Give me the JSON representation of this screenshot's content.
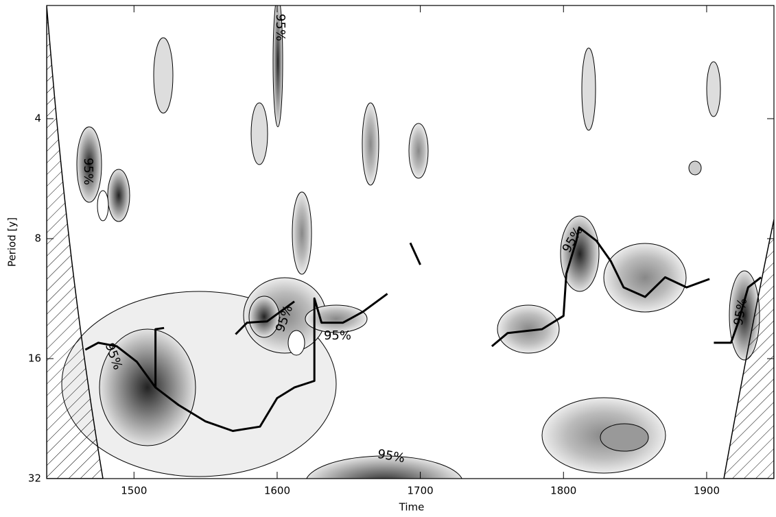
{
  "chart_data": {
    "type": "line",
    "xlabel": "Time",
    "ylabel": "Period [y]",
    "xlim": [
      1439,
      1947
    ],
    "xticks": [
      1500,
      1600,
      1700,
      1800,
      1900
    ],
    "ylim": [
      2.08,
      32
    ],
    "yticks": [
      4,
      8,
      16,
      32
    ],
    "ylog": true,
    "yreverse": true,
    "series": [
      {
        "color": "#000000",
        "x": [
          1466,
          1475,
          1488,
          1502,
          1515,
          1515,
          1521,
          null,
          1515,
          1531,
          1550,
          1569,
          1588,
          1600,
          1612,
          1626,
          1626,
          1631,
          1646,
          1660,
          1677,
          null,
          1571,
          1579,
          1593,
          1612,
          null,
          1693,
          1700,
          null,
          1750,
          1761,
          1785,
          1800,
          1802,
          1809,
          1811,
          1823,
          1833,
          1842,
          1857,
          1871,
          1886,
          1902,
          null,
          1905,
          1917,
          1922,
          1929,
          1938
        ],
        "values": [
          15.2,
          14.6,
          14.9,
          16.3,
          18.9,
          13.5,
          13.4,
          null,
          18.9,
          20.9,
          23.0,
          24.3,
          23.7,
          20.1,
          18.9,
          18.2,
          11.3,
          13.0,
          13.0,
          12.2,
          11.0,
          null,
          13.9,
          13.0,
          12.9,
          11.5,
          null,
          8.2,
          9.3,
          null,
          14.9,
          13.8,
          13.5,
          12.5,
          9.8,
          8.1,
          7.5,
          8.1,
          9.1,
          10.6,
          11.2,
          10.0,
          10.6,
          10.1,
          null,
          14.6,
          14.6,
          13.0,
          10.6,
          10.0
        ]
      }
    ],
    "annotations": [
      "95%",
      "95%",
      "95%",
      "95%",
      "95%",
      "95%",
      "95%",
      "95%"
    ]
  }
}
